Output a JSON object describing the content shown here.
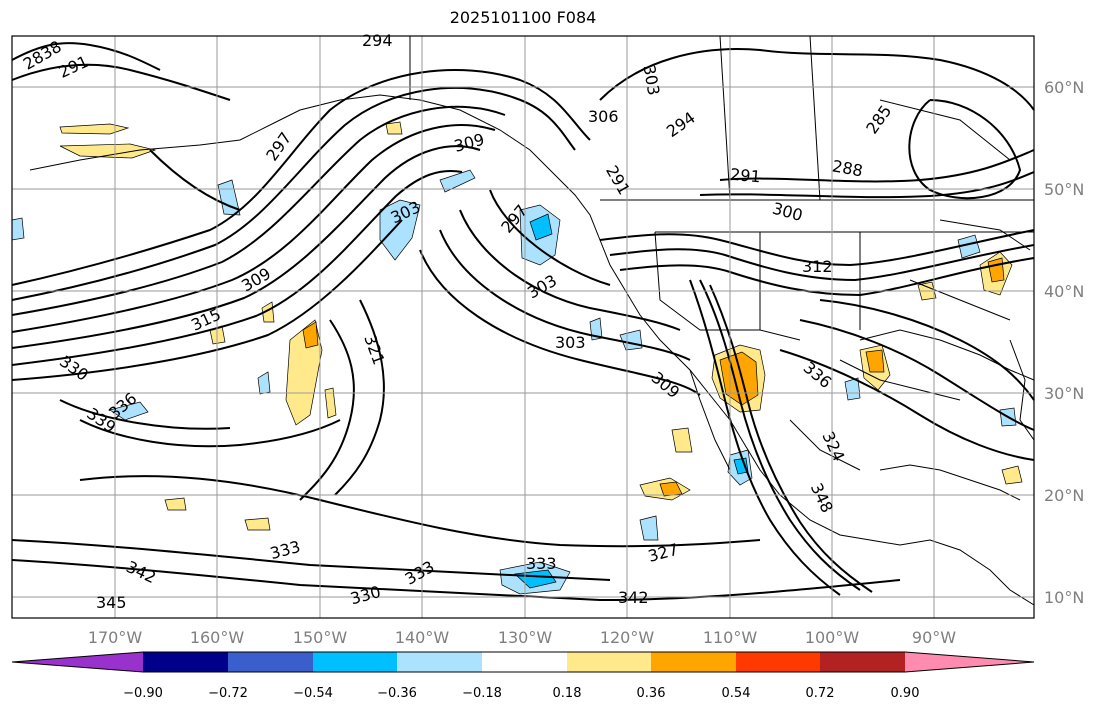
{
  "title": "2025101100 F084",
  "map": {
    "lat_labels": [
      "60°N",
      "50°N",
      "40°N",
      "30°N",
      "20°N",
      "10°N"
    ],
    "lon_labels": [
      "170°W",
      "160°W",
      "150°W",
      "140°W",
      "130°W",
      "120°W",
      "110°W",
      "100°W",
      "90°W"
    ],
    "contour_labels": [
      "294",
      "303",
      "306",
      "294",
      "285",
      "288",
      "291",
      "300",
      "312",
      "291",
      "297",
      "309",
      "303",
      "297",
      "303",
      "309",
      "315",
      "321",
      "303",
      "330",
      "336",
      "339",
      "309",
      "336",
      "324",
      "348",
      "333",
      "342",
      "345",
      "333",
      "330",
      "333",
      "327",
      "342",
      "291",
      "2838"
    ],
    "contour_color": "#000000",
    "coast_color": "#000000",
    "grid_color": "#9a9a9a"
  },
  "colorbar": {
    "tick_labels": [
      "−0.90",
      "−0.72",
      "−0.54",
      "−0.36",
      "−0.18",
      "0.18",
      "0.36",
      "0.54",
      "0.72",
      "0.90"
    ],
    "colors": [
      "#9932cc",
      "#00008b",
      "#3a5fcd",
      "#00bfff",
      "#ade2ff",
      "#ffffff",
      "#ffe98a",
      "#ffa500",
      "#ff3a00",
      "#b22222",
      "#ff8bb0"
    ]
  }
}
